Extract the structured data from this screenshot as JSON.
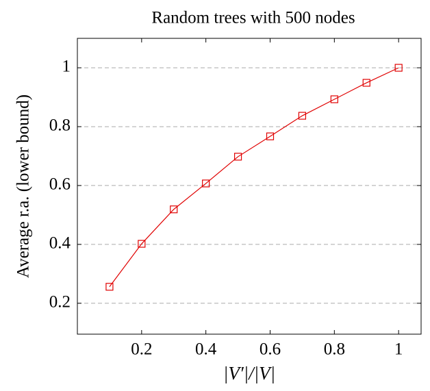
{
  "chart_data": {
    "type": "line",
    "title": "Random trees with 500 nodes",
    "xlabel": "|V′|/|V|",
    "ylabel": "Average r.a. (lower bound)",
    "x": [
      0.1,
      0.2,
      0.3,
      0.4,
      0.5,
      0.6,
      0.7,
      0.8,
      0.9,
      1
    ],
    "series": [
      {
        "color": "#e00000",
        "values": [
          0.256,
          0.402,
          0.519,
          0.607,
          0.698,
          0.767,
          0.837,
          0.893,
          0.949,
          1
        ]
      }
    ],
    "xlim": [
      0,
      1.07
    ],
    "xticks": [
      0.2,
      0.4,
      0.6,
      0.8,
      1
    ],
    "ylim": [
      0.095,
      1.1
    ],
    "yticks": [
      0.2,
      0.4,
      0.6,
      0.8,
      1
    ],
    "grid": true,
    "marker": "square"
  }
}
